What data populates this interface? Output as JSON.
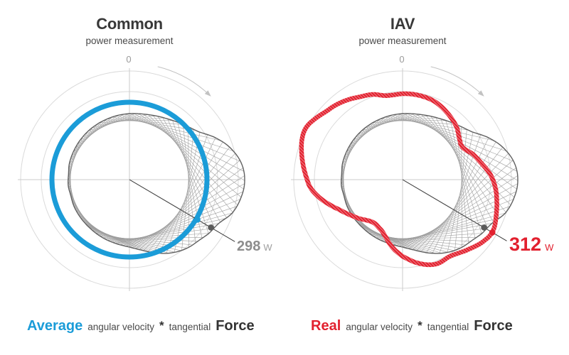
{
  "panels": [
    {
      "title": "Common",
      "subtitle": "power measurement",
      "zero": "0",
      "value": "298",
      "unit": "W",
      "caption": {
        "lead": "Average",
        "velocity": "angular velocity",
        "star": "*",
        "tangential": "tangential",
        "force": "Force"
      },
      "accent": "#1b9cd8"
    },
    {
      "title": "IAV",
      "subtitle": "power measurement",
      "zero": "0",
      "value": "312",
      "unit": "W",
      "caption": {
        "lead": "Real",
        "velocity": "angular velocity",
        "star": "*",
        "tangential": "tangential",
        "force": "Force"
      },
      "accent": "#e2202e"
    }
  ],
  "colors": {
    "grid": "#dadada",
    "crosshair": "#cbcbcb",
    "arrow": "#c2c2c2",
    "blob_stroke": "#606060",
    "hatch": "#9e9e9e",
    "pointer_line": "#3a3a3a",
    "dot_dark": "#5a5a5a",
    "background": "#ffffff"
  },
  "figure": {
    "centers": [
      [
        182,
        253
      ],
      [
        566,
        253
      ]
    ],
    "grid_radii": [
      153,
      124
    ],
    "axis_extent": 157,
    "rotation_direction": "clockwise",
    "rotation_arrow": {
      "radius": 164,
      "start_deg": 14,
      "end_deg": 43
    },
    "inner_tangent_radius": 83,
    "hatch_step_deg": 4,
    "avg_circle_radius": 109,
    "avg_circle_stroke": 7,
    "real_curve_stroke": 6.5,
    "pointer": {
      "angle_deg": 120.5,
      "lengths": [
        172,
        170
      ],
      "dots_left": [
        {
          "r": 111,
          "color": "accent"
        },
        {
          "r": 133,
          "color": "dark"
        }
      ],
      "dots_right": [
        {
          "r": 133,
          "color": "dark"
        },
        {
          "r": 146.5,
          "color": "accent"
        }
      ],
      "dot_size": 4.3
    },
    "torque_blob_samples": [
      [
        0,
        93
      ],
      [
        15,
        95
      ],
      [
        30,
        100
      ],
      [
        42,
        107
      ],
      [
        55,
        118
      ],
      [
        66,
        138
      ],
      [
        75,
        152
      ],
      [
        83,
        160
      ],
      [
        91,
        162
      ],
      [
        99,
        159
      ],
      [
        108,
        152
      ],
      [
        116,
        140
      ],
      [
        124,
        135
      ],
      [
        131,
        130
      ],
      [
        140,
        126
      ],
      [
        150,
        119
      ],
      [
        160,
        110
      ],
      [
        170,
        101
      ],
      [
        180,
        95
      ],
      [
        192,
        92
      ],
      [
        205,
        90
      ],
      [
        220,
        88
      ],
      [
        235,
        87
      ],
      [
        245,
        86.5
      ],
      [
        255,
        85.5
      ],
      [
        265,
        86.5
      ],
      [
        275,
        86
      ],
      [
        285,
        87.5
      ],
      [
        295,
        88
      ],
      [
        310,
        89
      ],
      [
        325,
        90
      ],
      [
        340,
        91
      ],
      [
        350,
        92
      ]
    ],
    "real_curve_samples": [
      [
        0,
        121
      ],
      [
        10,
        121
      ],
      [
        22,
        119
      ],
      [
        34,
        113
      ],
      [
        46,
        106
      ],
      [
        55,
        98
      ],
      [
        62,
        96
      ],
      [
        70,
        105
      ],
      [
        78,
        113
      ],
      [
        87,
        124
      ],
      [
        95,
        131
      ],
      [
        103,
        136
      ],
      [
        111,
        141
      ],
      [
        119,
        146
      ],
      [
        126,
        144
      ],
      [
        138,
        134
      ],
      [
        148,
        127
      ],
      [
        158,
        128
      ],
      [
        168,
        121
      ],
      [
        180,
        108
      ],
      [
        188,
        97
      ],
      [
        199,
        81
      ],
      [
        207,
        75
      ],
      [
        214,
        73
      ],
      [
        221,
        76
      ],
      [
        228,
        82
      ],
      [
        236,
        89
      ],
      [
        245,
        99
      ],
      [
        252,
        110
      ],
      [
        258,
        120
      ],
      [
        265,
        130
      ],
      [
        271,
        135
      ],
      [
        278,
        141
      ],
      [
        285,
        147
      ],
      [
        293,
        153
      ],
      [
        299,
        154
      ],
      [
        306,
        149
      ],
      [
        312,
        144
      ],
      [
        318,
        141
      ],
      [
        326,
        136
      ],
      [
        333,
        131
      ],
      [
        341,
        127
      ],
      [
        348,
        121
      ],
      [
        354,
        120
      ]
    ]
  }
}
